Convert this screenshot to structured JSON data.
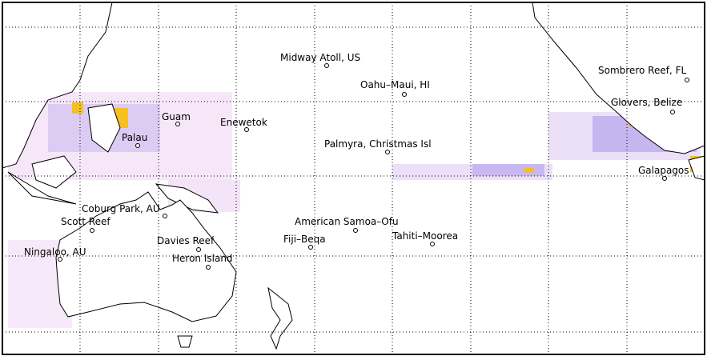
{
  "stations": [
    {
      "label": "Midway Atoll, US"
    },
    {
      "label": "Oahu–Maui, HI"
    },
    {
      "label": "Guam"
    },
    {
      "label": "Enewetok"
    },
    {
      "label": "Palau"
    },
    {
      "label": "Palmyra, Christmas Isl"
    },
    {
      "label": "Sombrero Reef, FL"
    },
    {
      "label": "Glovers, Belize"
    },
    {
      "label": "Galapagos"
    },
    {
      "label": "Coburg Park, AU"
    },
    {
      "label": "Scott Reef"
    },
    {
      "label": "American Samoa–Ofu"
    },
    {
      "label": "Fiji–Beqa"
    },
    {
      "label": "Tahiti–Moorea"
    },
    {
      "label": "Davies Reef"
    },
    {
      "label": "Ningaloo, AU"
    },
    {
      "label": "Heron Island"
    }
  ]
}
